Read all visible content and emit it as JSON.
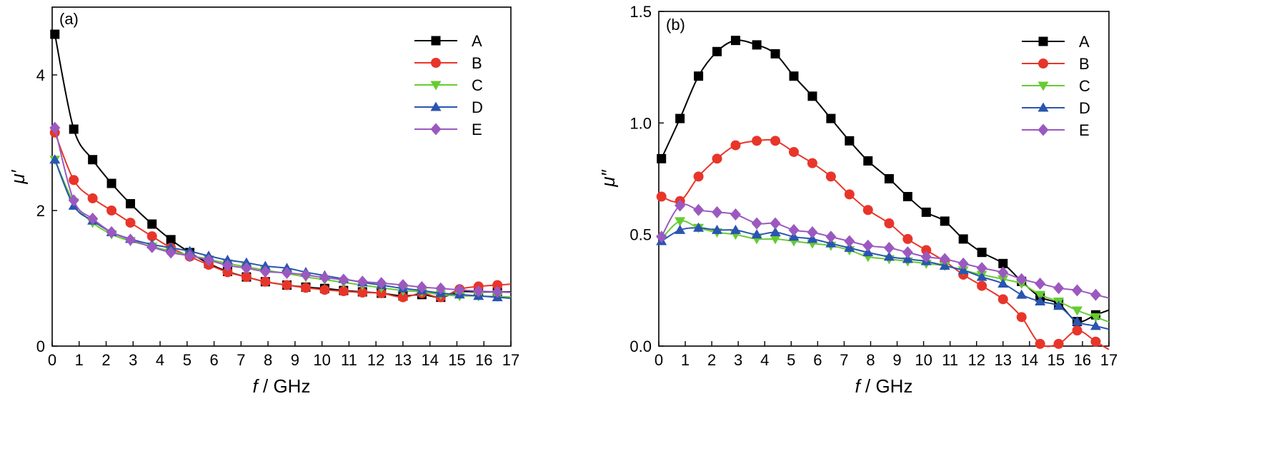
{
  "colors": {
    "A": "#000000",
    "B": "#e8352a",
    "C": "#66cc33",
    "D": "#2a55b0",
    "E": "#9b59c0"
  },
  "chart_data": [
    {
      "type": "line",
      "panel_label": "(a)",
      "xlabel_var": "f",
      "xlabel_unit": " / GHz",
      "ylabel_var": "μ′",
      "xlim": [
        0,
        17
      ],
      "ylim": [
        0,
        5
      ],
      "xticks": [
        "0",
        "1",
        "2",
        "3",
        "4",
        "5",
        "6",
        "7",
        "8",
        "9",
        "10",
        "11",
        "12",
        "13",
        "14",
        "15",
        "16",
        "17"
      ],
      "yticks": [
        "0",
        "2",
        "4"
      ],
      "legend_position": "top-right",
      "series": [
        {
          "name": "A",
          "marker": "square",
          "color": "#000000",
          "x": [
            0.1,
            0.8,
            1.5,
            2.2,
            2.9,
            3.7,
            4.4,
            5.1,
            5.8,
            6.5,
            7.2,
            7.9,
            8.7,
            9.4,
            10.1,
            10.8,
            11.5,
            12.2,
            13.0,
            13.7,
            14.4,
            15.1,
            15.8,
            16.5
          ],
          "y": [
            4.6,
            3.2,
            2.75,
            2.4,
            2.1,
            1.8,
            1.57,
            1.38,
            1.22,
            1.1,
            1.02,
            0.95,
            0.9,
            0.87,
            0.85,
            0.82,
            0.8,
            0.78,
            0.74,
            0.76,
            0.72,
            0.8,
            0.8,
            0.8
          ]
        },
        {
          "name": "B",
          "marker": "circle",
          "color": "#e8352a",
          "x": [
            0.1,
            0.8,
            1.5,
            2.2,
            2.9,
            3.7,
            4.4,
            5.1,
            5.8,
            6.5,
            7.2,
            7.9,
            8.7,
            9.4,
            10.1,
            10.8,
            11.5,
            12.2,
            13.0,
            13.7,
            14.4,
            15.1,
            15.8,
            16.5
          ],
          "y": [
            3.15,
            2.45,
            2.18,
            2.0,
            1.82,
            1.62,
            1.45,
            1.32,
            1.2,
            1.09,
            1.02,
            0.95,
            0.9,
            0.86,
            0.83,
            0.81,
            0.79,
            0.78,
            0.72,
            0.78,
            0.72,
            0.84,
            0.88,
            0.9
          ]
        },
        {
          "name": "C",
          "marker": "triangle-down",
          "color": "#66cc33",
          "x": [
            0.1,
            0.8,
            1.5,
            2.2,
            2.9,
            3.7,
            4.4,
            5.1,
            5.8,
            6.5,
            7.2,
            7.9,
            8.7,
            9.4,
            10.1,
            10.8,
            11.5,
            12.2,
            13.0,
            13.7,
            14.4,
            15.1,
            15.8,
            16.5
          ],
          "y": [
            2.75,
            2.12,
            1.82,
            1.65,
            1.55,
            1.47,
            1.4,
            1.34,
            1.28,
            1.22,
            1.17,
            1.12,
            1.07,
            1.02,
            0.98,
            0.94,
            0.9,
            0.86,
            0.82,
            0.8,
            0.76,
            0.74,
            0.74,
            0.73
          ]
        },
        {
          "name": "D",
          "marker": "triangle-up",
          "color": "#2a55b0",
          "x": [
            0.1,
            0.8,
            1.5,
            2.2,
            2.9,
            3.7,
            4.4,
            5.1,
            5.8,
            6.5,
            7.2,
            7.9,
            8.7,
            9.4,
            10.1,
            10.8,
            11.5,
            12.2,
            13.0,
            13.7,
            14.4,
            15.1,
            15.8,
            16.5
          ],
          "y": [
            2.75,
            2.07,
            1.85,
            1.68,
            1.58,
            1.5,
            1.45,
            1.4,
            1.33,
            1.27,
            1.23,
            1.18,
            1.15,
            1.09,
            1.04,
            0.99,
            0.94,
            0.9,
            0.85,
            0.82,
            0.78,
            0.76,
            0.74,
            0.72
          ]
        },
        {
          "name": "E",
          "marker": "diamond",
          "color": "#9b59c0",
          "x": [
            0.1,
            0.8,
            1.5,
            2.2,
            2.9,
            3.7,
            4.4,
            5.1,
            5.8,
            6.5,
            7.2,
            7.9,
            8.7,
            9.4,
            10.1,
            10.8,
            11.5,
            12.2,
            13.0,
            13.7,
            14.4,
            15.1,
            15.8,
            16.5
          ],
          "y": [
            3.22,
            2.15,
            1.88,
            1.68,
            1.57,
            1.46,
            1.38,
            1.33,
            1.27,
            1.19,
            1.15,
            1.1,
            1.08,
            1.05,
            1.01,
            0.98,
            0.95,
            0.93,
            0.9,
            0.87,
            0.85,
            0.83,
            0.81,
            0.8
          ]
        }
      ]
    },
    {
      "type": "line",
      "panel_label": "(b)",
      "xlabel_var": "f",
      "xlabel_unit": " / GHz",
      "ylabel_var": "μ″",
      "xlim": [
        0,
        17
      ],
      "ylim": [
        0,
        1.5
      ],
      "xticks": [
        "0",
        "1",
        "2",
        "3",
        "4",
        "5",
        "6",
        "7",
        "8",
        "9",
        "10",
        "11",
        "12",
        "13",
        "14",
        "15",
        "16",
        "17"
      ],
      "yticks": [
        "0.0",
        "0.5",
        "1.0",
        "1.5"
      ],
      "legend_position": "top-right",
      "series": [
        {
          "name": "A",
          "marker": "square",
          "color": "#000000",
          "x": [
            0.1,
            0.8,
            1.5,
            2.2,
            2.9,
            3.7,
            4.4,
            5.1,
            5.8,
            6.5,
            7.2,
            7.9,
            8.7,
            9.4,
            10.1,
            10.8,
            11.5,
            12.2,
            13.0,
            13.7,
            14.4,
            15.1,
            15.8,
            16.5
          ],
          "y": [
            0.84,
            1.02,
            1.21,
            1.32,
            1.37,
            1.35,
            1.31,
            1.21,
            1.12,
            1.02,
            0.92,
            0.83,
            0.75,
            0.67,
            0.6,
            0.56,
            0.48,
            0.42,
            0.37,
            0.29,
            0.22,
            0.19,
            0.11,
            0.14
          ]
        },
        {
          "name": "B",
          "marker": "circle",
          "color": "#e8352a",
          "x": [
            0.1,
            0.8,
            1.5,
            2.2,
            2.9,
            3.7,
            4.4,
            5.1,
            5.8,
            6.5,
            7.2,
            7.9,
            8.7,
            9.4,
            10.1,
            10.8,
            11.5,
            12.2,
            13.0,
            13.7,
            14.4,
            15.1,
            15.8,
            16.5
          ],
          "y": [
            0.67,
            0.65,
            0.76,
            0.84,
            0.9,
            0.92,
            0.92,
            0.87,
            0.82,
            0.76,
            0.68,
            0.61,
            0.55,
            0.48,
            0.43,
            0.38,
            0.32,
            0.27,
            0.21,
            0.13,
            0.01,
            0.01,
            0.07,
            0.02
          ]
        },
        {
          "name": "C",
          "marker": "triangle-down",
          "color": "#66cc33",
          "x": [
            0.1,
            0.8,
            1.5,
            2.2,
            2.9,
            3.7,
            4.4,
            5.1,
            5.8,
            6.5,
            7.2,
            7.9,
            8.7,
            9.4,
            10.1,
            10.8,
            11.5,
            12.2,
            13.0,
            13.7,
            14.4,
            15.1,
            15.8,
            16.5
          ],
          "y": [
            0.48,
            0.56,
            0.53,
            0.51,
            0.5,
            0.48,
            0.48,
            0.47,
            0.46,
            0.45,
            0.43,
            0.4,
            0.39,
            0.38,
            0.37,
            0.36,
            0.34,
            0.32,
            0.3,
            0.28,
            0.23,
            0.2,
            0.16,
            0.13
          ]
        },
        {
          "name": "D",
          "marker": "triangle-up",
          "color": "#2a55b0",
          "x": [
            0.1,
            0.8,
            1.5,
            2.2,
            2.9,
            3.7,
            4.4,
            5.1,
            5.8,
            6.5,
            7.2,
            7.9,
            8.7,
            9.4,
            10.1,
            10.8,
            11.5,
            12.2,
            13.0,
            13.7,
            14.4,
            15.1,
            15.8,
            16.5
          ],
          "y": [
            0.47,
            0.52,
            0.53,
            0.52,
            0.52,
            0.5,
            0.51,
            0.49,
            0.48,
            0.46,
            0.44,
            0.42,
            0.4,
            0.39,
            0.38,
            0.36,
            0.34,
            0.31,
            0.28,
            0.23,
            0.2,
            0.18,
            0.11,
            0.09
          ]
        },
        {
          "name": "E",
          "marker": "diamond",
          "color": "#9b59c0",
          "x": [
            0.1,
            0.8,
            1.5,
            2.2,
            2.9,
            3.7,
            4.4,
            5.1,
            5.8,
            6.5,
            7.2,
            7.9,
            8.7,
            9.4,
            10.1,
            10.8,
            11.5,
            12.2,
            13.0,
            13.7,
            14.4,
            15.1,
            15.8,
            16.5
          ],
          "y": [
            0.49,
            0.63,
            0.61,
            0.6,
            0.59,
            0.55,
            0.55,
            0.52,
            0.51,
            0.49,
            0.47,
            0.45,
            0.44,
            0.42,
            0.4,
            0.39,
            0.37,
            0.35,
            0.33,
            0.3,
            0.28,
            0.26,
            0.25,
            0.23
          ]
        }
      ]
    }
  ]
}
